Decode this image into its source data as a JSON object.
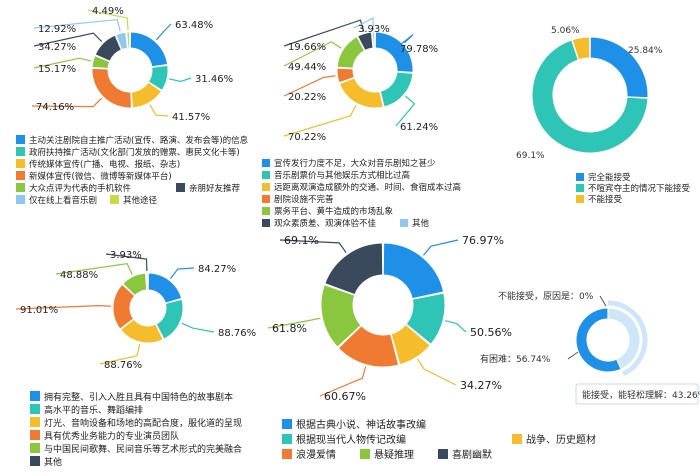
{
  "colors": {
    "blue": "#1e90e8",
    "teal": "#2ec4b6",
    "yellow": "#f5bd2c",
    "orange": "#f07a32",
    "green": "#8bc63f",
    "dark": "#3a4a5c",
    "light_blue": "#8ec8f2",
    "lime": "#c8d94a",
    "pale": "#cfe6f8",
    "leader": "#555555"
  },
  "chart_data": [
    {
      "type": "pie",
      "title": "",
      "categories": [
        "主动关注剧院自主推广活动(宣传、路演、发布会等)的信息",
        "政府扶持推广活动(文化部门发放的赠票、惠民文化卡等)",
        "传统媒体宣传(广播、电视、报纸、杂志)",
        "新媒体宣传(微信、微博等新媒体平台)",
        "大众点评为代表的手机软件",
        "亲朋好友推荐",
        "仅在线上看音乐剧",
        "其他途径"
      ],
      "values": [
        63.48,
        31.46,
        41.57,
        74.16,
        15.17,
        34.27,
        12.92,
        4.49
      ],
      "value_labels": [
        "63.48%",
        "31.46%",
        "41.57%",
        "74.16%",
        "15.17%",
        "34.27%",
        "12.92%",
        "4.49%"
      ],
      "legend": "bottom"
    },
    {
      "type": "pie",
      "title": "",
      "categories": [
        "宣传发行力度不足，大众对音乐剧知之甚少",
        "音乐剧票价与其他娱乐方式相比过高",
        "远距离观演造成额外的交通、时间、食宿成本过高",
        "剧院设施不完善",
        "票务平台、黄牛造成的市场乱象",
        "观众素质差、观演体验不佳",
        "其他"
      ],
      "values": [
        79.78,
        61.24,
        70.22,
        20.22,
        49.44,
        19.66,
        3.93
      ],
      "value_labels": [
        "79.78%",
        "61.24%",
        "70.22%",
        "20.22%",
        "49.44%",
        "19.66%",
        "3.93%"
      ],
      "legend": "bottom"
    },
    {
      "type": "pie",
      "title": "",
      "categories": [
        "完全能接受",
        "不喧宾夺主的情况下能接受",
        "不能接受"
      ],
      "values": [
        25.84,
        69.1,
        5.06
      ],
      "value_labels": [
        "25.84%",
        "69.1%",
        "5.06%"
      ],
      "legend": "bottom"
    },
    {
      "type": "pie",
      "title": "",
      "categories": [
        "拥有完整、引入入胜且具有中国特色的故事剧本",
        "高水平的音乐、舞蹈编排",
        "灯光、音响设备和场地的高配合度，服化道的呈现",
        "具有优秀业务能力的专业演员团队",
        "与中国民间歌舞、民间音乐等艺术形式的完美融合",
        "其他"
      ],
      "values": [
        84.27,
        88.76,
        88.76,
        91.01,
        48.88,
        3.93
      ],
      "value_labels": [
        "84.27%",
        "88.76%",
        "88.76%",
        "91.01%",
        "48.88%",
        "3.93%"
      ],
      "legend": "bottom"
    },
    {
      "type": "pie",
      "title": "",
      "categories": [
        "根据古典小说、神话故事改编",
        "根据现当代人物传记改编",
        "战争、历史题材",
        "浪漫爱情",
        "悬疑推理",
        "喜剧幽默"
      ],
      "values": [
        76.97,
        50.56,
        34.27,
        60.67,
        61.8,
        69.1
      ],
      "value_labels": [
        "76.97%",
        "50.56%",
        "34.27%",
        "60.67%",
        "61.8%",
        "69.1%"
      ],
      "legend": "bottom"
    },
    {
      "type": "pie",
      "title": "",
      "categories": [
        "能接受，能轻松理解",
        "有困难",
        "不能接受，原因是"
      ],
      "values": [
        43.26,
        56.74,
        0
      ],
      "value_labels": [
        "能接受，能轻松理解：43.26%",
        "有困难：56.74%",
        "不能接受，原因是：0%"
      ],
      "legend": "none"
    }
  ]
}
